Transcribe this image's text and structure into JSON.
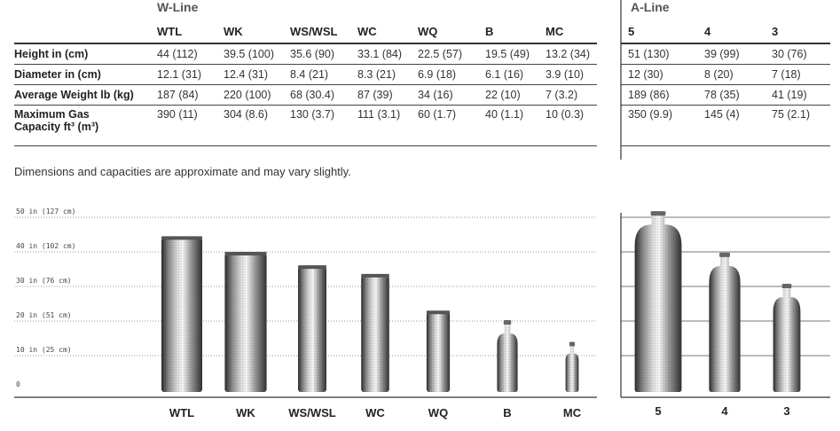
{
  "wline_title": "W-Line",
  "aline_title": "A-Line",
  "wline_columns": [
    "WTL",
    "WK",
    "WS/WSL",
    "WC",
    "WQ",
    "B",
    "MC"
  ],
  "aline_columns": [
    "5",
    "4",
    "3"
  ],
  "rows": [
    {
      "label": "Height in (cm)",
      "w": [
        "44 (112)",
        "39.5 (100)",
        "35.6 (90)",
        "33.1 (84)",
        "22.5 (57)",
        "19.5 (49)",
        "13.2 (34)"
      ],
      "a": [
        "51 (130)",
        "39 (99)",
        "30 (76)"
      ]
    },
    {
      "label": "Diameter in (cm)",
      "w": [
        "12.1 (31)",
        "12.4 (31)",
        "8.4 (21)",
        "8.3 (21)",
        "6.9 (18)",
        "6.1 (16)",
        "3.9 (10)"
      ],
      "a": [
        "12 (30)",
        "8 (20)",
        "7 (18)"
      ]
    },
    {
      "label": "Average Weight lb (kg)",
      "w": [
        "187 (84)",
        "220 (100)",
        "68 (30.4)",
        "87 (39)",
        "34 (16)",
        "22 (10)",
        "7 (3.2)"
      ],
      "a": [
        "189 (86)",
        "78 (35)",
        "41 (19)"
      ]
    },
    {
      "label": "Maximum Gas",
      "label2": "Capacity ft³ (m³)",
      "w": [
        "390 (11)",
        "304 (8.6)",
        "130 (3.7)",
        "111 (3.1)",
        "60 (1.7)",
        "40 (1.1)",
        "10 (0.3)"
      ],
      "a": [
        "350 (9.9)",
        "145 (4)",
        "75 (2.1)"
      ]
    }
  ],
  "note": "Dimensions and capacities are approximate and may vary slightly.",
  "chart_data": {
    "type": "bar",
    "y_unit": "in",
    "ylim": [
      0,
      50
    ],
    "yticks": [
      {
        "v": 0,
        "label": "0"
      },
      {
        "v": 10,
        "label": "10 in (25 cm)"
      },
      {
        "v": 20,
        "label": "20 in (51 cm)"
      },
      {
        "v": 30,
        "label": "30 in (76 cm)"
      },
      {
        "v": 40,
        "label": "40 in (102 cm)"
      },
      {
        "v": 50,
        "label": "50 in (127 cm)"
      }
    ],
    "grid": true,
    "groups": [
      {
        "name": "W-Line",
        "categories": [
          "WTL",
          "WK",
          "WS/WSL",
          "WC",
          "WQ",
          "B",
          "MC"
        ],
        "heights": [
          44,
          39.5,
          35.6,
          33.1,
          22.5,
          19.5,
          13.2
        ],
        "diameters": [
          12.1,
          12.4,
          8.4,
          8.3,
          6.9,
          6.1,
          3.9
        ],
        "shapes": [
          "flat",
          "flat",
          "flat",
          "flat",
          "flat",
          "valve",
          "valve"
        ]
      },
      {
        "name": "A-Line",
        "categories": [
          "5",
          "4",
          "3"
        ],
        "heights": [
          51,
          39,
          30
        ],
        "diameters": [
          12,
          8,
          7
        ],
        "shapes": [
          "valve",
          "valve",
          "valve"
        ]
      }
    ]
  }
}
